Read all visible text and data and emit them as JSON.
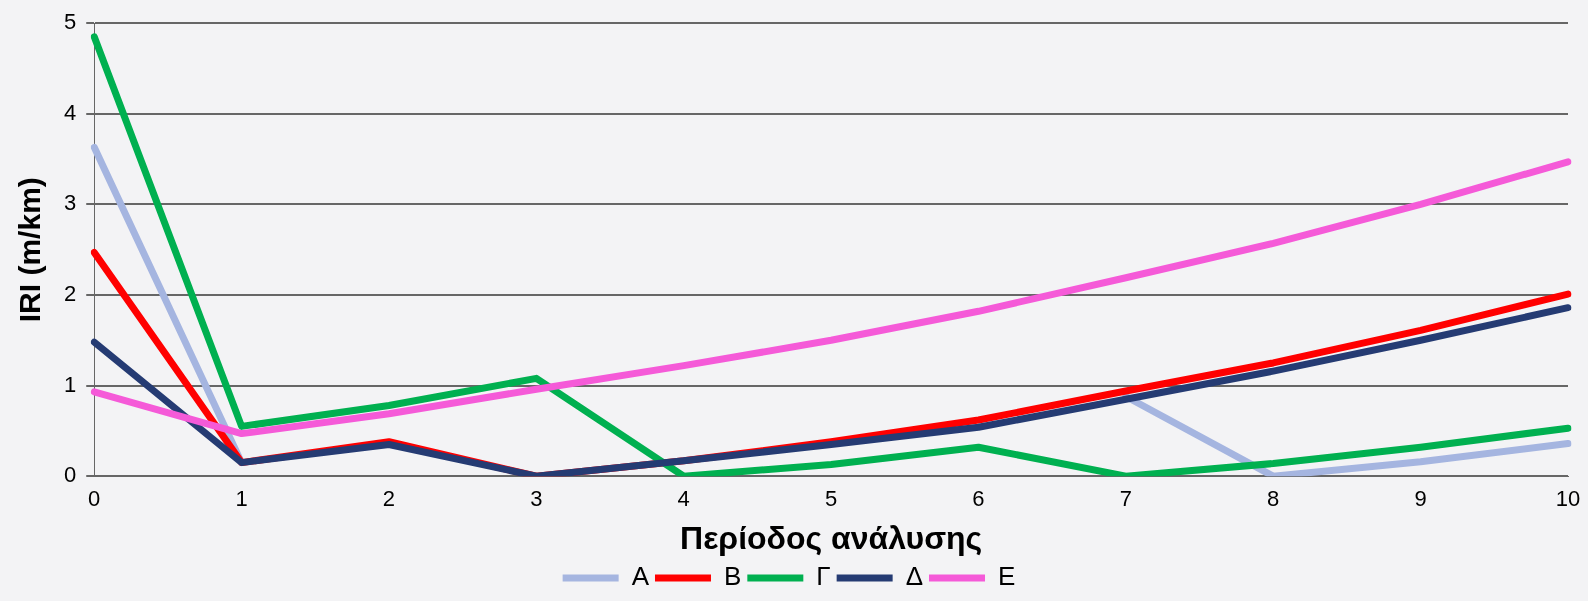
{
  "chart_data": {
    "type": "line",
    "xlabel": "Περίοδος ανάλυσης",
    "ylabel": "IRI (m/km)",
    "categories": [
      "0",
      "1",
      "2",
      "3",
      "4",
      "5",
      "6",
      "7",
      "8",
      "9",
      "10"
    ],
    "series": [
      {
        "name": "Α",
        "color": "#a5b5e0",
        "values": [
          3.63,
          0.15,
          null,
          null,
          null,
          null,
          null,
          0.88,
          0,
          0.16,
          0.36
        ]
      },
      {
        "name": "Β",
        "color": "#ff0000",
        "values": [
          2.47,
          0.15,
          0.38,
          0,
          0.17,
          0.38,
          0.62,
          0.94,
          1.25,
          1.61,
          2.01
        ]
      },
      {
        "name": "Γ",
        "color": "#00b050",
        "values": [
          4.85,
          0.55,
          0.78,
          1.08,
          0,
          0.13,
          0.32,
          0,
          0.14,
          0.32,
          0.53
        ]
      },
      {
        "name": "Δ",
        "color": "#253b73",
        "values": [
          1.48,
          0.15,
          0.35,
          0,
          0.17,
          0.35,
          0.54,
          0.85,
          1.16,
          1.5,
          1.86
        ]
      },
      {
        "name": "Ε",
        "color": "#f55ad8",
        "values": [
          0.93,
          0.47,
          0.69,
          0.96,
          1.22,
          1.5,
          1.82,
          2.19,
          2.57,
          3.0,
          3.47
        ]
      }
    ],
    "ylim": [
      0,
      5
    ],
    "yticks": [
      0,
      1,
      2,
      3,
      4,
      5
    ],
    "grid": "y",
    "legend": "bottom",
    "marker": "none"
  }
}
